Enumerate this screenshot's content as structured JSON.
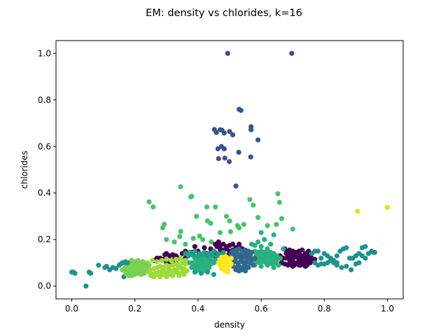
{
  "chart_data": {
    "type": "scatter",
    "title": "EM: density vs chlorides, k=16",
    "xlabel": "density",
    "ylabel": "chlorides",
    "xlim": [
      -0.05,
      1.05
    ],
    "ylim": [
      -0.055,
      1.055
    ],
    "xticks": [
      0.0,
      0.2,
      0.4,
      0.6,
      0.8,
      1.0
    ],
    "yticks": [
      0.0,
      0.2,
      0.4,
      0.6,
      0.8,
      1.0
    ],
    "xtick_labels": [
      "0.0",
      "0.2",
      "0.4",
      "0.6",
      "0.8",
      "1.0"
    ],
    "ytick_labels": [
      "0.0",
      "0.2",
      "0.4",
      "0.6",
      "0.8",
      "1.0"
    ],
    "grid": false,
    "legend": "none",
    "series": [
      {
        "color": "#3b528b",
        "x": [
          0.494,
          0.697,
          0.53,
          0.536,
          0.452,
          0.47,
          0.476,
          0.568,
          0.568,
          0.5,
          0.51,
          0.458,
          0.483,
          0.474,
          0.59,
          0.463,
          0.483,
          0.529,
          0.465,
          0.485,
          0.499,
          0.567,
          0.52
        ],
        "y": [
          1.0,
          1.0,
          0.76,
          0.755,
          0.673,
          0.672,
          0.67,
          0.685,
          0.672,
          0.664,
          0.65,
          0.66,
          0.658,
          0.6,
          0.628,
          0.59,
          0.59,
          0.575,
          0.548,
          0.55,
          0.535,
          0.555,
          0.43
        ]
      },
      {
        "color": "#4ac16d",
        "x": [
          0.345,
          0.245,
          0.258,
          0.377,
          0.38,
          0.428,
          0.653,
          0.658,
          0.564,
          0.575,
          0.665,
          0.59,
          0.455,
          0.395,
          0.43,
          0.44,
          0.49,
          0.5,
          0.525,
          0.53,
          0.545,
          0.62,
          0.648,
          0.7,
          0.293,
          0.288,
          0.345,
          0.342,
          0.503,
          0.47,
          0.405,
          0.442,
          0.415,
          0.325,
          0.3,
          0.36,
          0.385
        ],
        "y": [
          0.427,
          0.362,
          0.34,
          0.383,
          0.386,
          0.34,
          0.397,
          0.36,
          0.372,
          0.348,
          0.29,
          0.295,
          0.34,
          0.3,
          0.28,
          0.27,
          0.3,
          0.28,
          0.26,
          0.25,
          0.265,
          0.26,
          0.265,
          0.245,
          0.266,
          0.25,
          0.235,
          0.213,
          0.234,
          0.23,
          0.215,
          0.19,
          0.2,
          0.19,
          0.2,
          0.18,
          0.205
        ]
      },
      {
        "color": "#440154",
        "x": [
          0.455,
          0.46,
          0.465,
          0.47,
          0.48,
          0.49,
          0.5,
          0.51,
          0.52,
          0.47,
          0.48,
          0.49,
          0.5,
          0.51,
          0.44,
          0.45,
          0.53,
          0.54,
          0.46,
          0.47,
          0.5,
          0.52,
          0.43,
          0.55,
          0.48,
          0.49,
          0.51,
          0.36,
          0.38,
          0.4,
          0.39,
          0.42,
          0.415,
          0.45,
          0.44,
          0.53,
          0.295,
          0.3,
          0.31,
          0.32,
          0.33,
          0.35,
          0.34,
          0.36,
          0.315,
          0.325,
          0.28,
          0.29,
          0.3,
          0.305,
          0.31,
          0.33,
          0.27,
          0.26,
          0.675,
          0.68,
          0.69,
          0.7,
          0.71,
          0.72,
          0.73,
          0.74,
          0.75,
          0.68,
          0.69,
          0.7,
          0.71,
          0.72,
          0.73,
          0.74,
          0.75,
          0.76,
          0.67,
          0.68,
          0.69,
          0.7,
          0.71,
          0.72,
          0.73,
          0.74,
          0.75,
          0.76,
          0.77,
          0.69,
          0.7,
          0.71,
          0.72,
          0.73,
          0.74,
          0.75,
          0.76,
          0.665,
          0.675,
          0.685,
          0.695,
          0.705,
          0.715,
          0.725,
          0.735,
          0.745,
          0.755,
          0.7,
          0.72,
          0.74,
          0.66,
          0.65,
          0.64
        ],
        "y": [
          0.18,
          0.17,
          0.19,
          0.175,
          0.18,
          0.17,
          0.175,
          0.18,
          0.165,
          0.16,
          0.155,
          0.16,
          0.15,
          0.155,
          0.16,
          0.15,
          0.17,
          0.16,
          0.14,
          0.145,
          0.14,
          0.15,
          0.14,
          0.15,
          0.135,
          0.13,
          0.13,
          0.15,
          0.145,
          0.15,
          0.17,
          0.165,
          0.135,
          0.13,
          0.12,
          0.18,
          0.135,
          0.14,
          0.13,
          0.135,
          0.13,
          0.14,
          0.12,
          0.12,
          0.11,
          0.115,
          0.12,
          0.115,
          0.1,
          0.1,
          0.09,
          0.1,
          0.12,
          0.11,
          0.16,
          0.15,
          0.155,
          0.15,
          0.145,
          0.15,
          0.155,
          0.14,
          0.15,
          0.14,
          0.135,
          0.13,
          0.135,
          0.14,
          0.13,
          0.135,
          0.13,
          0.14,
          0.12,
          0.12,
          0.115,
          0.12,
          0.125,
          0.12,
          0.115,
          0.12,
          0.11,
          0.12,
          0.115,
          0.1,
          0.105,
          0.1,
          0.11,
          0.1,
          0.105,
          0.1,
          0.11,
          0.1,
          0.095,
          0.09,
          0.095,
          0.09,
          0.095,
          0.09,
          0.095,
          0.09,
          0.1,
          0.085,
          0.09,
          0.085,
          0.13,
          0.12,
          0.14
        ]
      },
      {
        "color": "#2ab07f",
        "x": [
          0.385,
          0.39,
          0.4,
          0.41,
          0.42,
          0.43,
          0.44,
          0.395,
          0.405,
          0.415,
          0.425,
          0.435,
          0.445,
          0.38,
          0.39,
          0.4,
          0.41,
          0.42,
          0.43,
          0.44,
          0.45,
          0.385,
          0.395,
          0.405,
          0.415,
          0.425,
          0.435,
          0.39,
          0.4,
          0.41,
          0.42,
          0.38,
          0.43,
          0.395,
          0.41,
          0.425,
          0.37,
          0.36,
          0.445,
          0.455,
          0.58,
          0.59,
          0.6,
          0.61,
          0.62,
          0.63,
          0.64,
          0.65,
          0.585,
          0.595,
          0.605,
          0.615,
          0.625,
          0.635,
          0.645,
          0.57,
          0.58,
          0.59,
          0.6,
          0.61,
          0.62,
          0.63,
          0.64,
          0.65,
          0.66,
          0.575,
          0.585,
          0.595,
          0.605,
          0.615,
          0.625,
          0.635,
          0.645,
          0.655,
          0.58,
          0.6,
          0.62,
          0.64,
          0.56,
          0.55,
          0.54,
          0.57,
          0.6,
          0.62,
          0.63,
          0.61,
          0.59,
          0.58,
          0.6,
          0.64,
          0.67
        ],
        "y": [
          0.13,
          0.12,
          0.125,
          0.13,
          0.12,
          0.125,
          0.12,
          0.11,
          0.115,
          0.11,
          0.115,
          0.11,
          0.105,
          0.1,
          0.1,
          0.105,
          0.1,
          0.105,
          0.1,
          0.095,
          0.1,
          0.09,
          0.085,
          0.09,
          0.085,
          0.09,
          0.08,
          0.075,
          0.075,
          0.07,
          0.075,
          0.08,
          0.07,
          0.065,
          0.06,
          0.065,
          0.1,
          0.11,
          0.13,
          0.11,
          0.15,
          0.145,
          0.15,
          0.145,
          0.14,
          0.145,
          0.14,
          0.13,
          0.135,
          0.13,
          0.135,
          0.13,
          0.125,
          0.13,
          0.12,
          0.12,
          0.12,
          0.115,
          0.12,
          0.115,
          0.12,
          0.11,
          0.115,
          0.11,
          0.12,
          0.1,
          0.105,
          0.1,
          0.105,
          0.1,
          0.1,
          0.095,
          0.1,
          0.09,
          0.09,
          0.085,
          0.09,
          0.08,
          0.1,
          0.12,
          0.13,
          0.18,
          0.17,
          0.16,
          0.18,
          0.2,
          0.19,
          0.175,
          0.23,
          0.22,
          0.16
        ]
      },
      {
        "color": "#21918c",
        "x": [
          0.0,
          0.005,
          0.01,
          0.045,
          0.055,
          0.06,
          0.085,
          0.105,
          0.11,
          0.12,
          0.13,
          0.14,
          0.15,
          0.155,
          0.16,
          0.165,
          0.17,
          0.175,
          0.18,
          0.19,
          0.2,
          0.165,
          0.175,
          0.185,
          0.195,
          0.76,
          0.77,
          0.78,
          0.79,
          0.8,
          0.81,
          0.82,
          0.83,
          0.84,
          0.85,
          0.86,
          0.87,
          0.88,
          0.89,
          0.9,
          0.91,
          0.92,
          0.93,
          0.94,
          0.95,
          0.96,
          0.89,
          0.84,
          0.8,
          0.77,
          0.78,
          0.79,
          0.81,
          0.82,
          0.83,
          0.84,
          0.855,
          0.87,
          0.885,
          0.9,
          0.91,
          0.92,
          0.93,
          0.955
        ],
        "y": [
          0.06,
          0.06,
          0.055,
          0.0,
          0.06,
          0.055,
          0.09,
          0.08,
          0.085,
          0.07,
          0.08,
          0.075,
          0.09,
          0.095,
          0.1,
          0.1,
          0.105,
          0.09,
          0.1,
          0.11,
          0.09,
          0.04,
          0.06,
          0.065,
          0.07,
          0.14,
          0.15,
          0.15,
          0.12,
          0.14,
          0.13,
          0.12,
          0.11,
          0.13,
          0.15,
          0.16,
          0.165,
          0.12,
          0.12,
          0.13,
          0.1,
          0.165,
          0.17,
          0.14,
          0.15,
          0.145,
          0.12,
          0.1,
          0.095,
          0.1,
          0.09,
          0.095,
          0.1,
          0.11,
          0.1,
          0.09,
          0.08,
          0.085,
          0.07,
          0.095,
          0.14,
          0.13,
          0.12,
          0.145
        ]
      },
      {
        "color": "#9fda3a",
        "x": [
          0.245,
          0.25,
          0.26,
          0.27,
          0.28,
          0.29,
          0.3,
          0.31,
          0.32,
          0.33,
          0.34,
          0.35,
          0.36,
          0.255,
          0.265,
          0.275,
          0.285,
          0.295,
          0.305,
          0.315,
          0.325,
          0.335,
          0.345,
          0.355,
          0.25,
          0.26,
          0.27,
          0.28,
          0.29,
          0.3,
          0.31,
          0.32,
          0.33,
          0.34,
          0.35,
          0.365,
          0.24,
          0.255,
          0.27,
          0.285,
          0.3,
          0.315,
          0.33,
          0.345,
          0.36,
          0.26,
          0.28,
          0.3,
          0.32,
          0.34,
          0.355
        ],
        "y": [
          0.06,
          0.07,
          0.075,
          0.08,
          0.085,
          0.08,
          0.09,
          0.085,
          0.09,
          0.095,
          0.09,
          0.1,
          0.095,
          0.05,
          0.055,
          0.06,
          0.065,
          0.06,
          0.07,
          0.065,
          0.07,
          0.075,
          0.08,
          0.075,
          0.045,
          0.045,
          0.05,
          0.045,
          0.05,
          0.055,
          0.05,
          0.055,
          0.06,
          0.055,
          0.06,
          0.065,
          0.1,
          0.11,
          0.105,
          0.11,
          0.115,
          0.11,
          0.115,
          0.12,
          0.11,
          0.04,
          0.04,
          0.04,
          0.045,
          0.045,
          0.05
        ]
      },
      {
        "color": "#7ad151",
        "x": [
          0.16,
          0.165,
          0.17,
          0.175,
          0.18,
          0.185,
          0.19,
          0.195,
          0.2,
          0.205,
          0.21,
          0.215,
          0.22,
          0.225,
          0.23,
          0.235,
          0.17,
          0.18,
          0.19,
          0.2,
          0.21,
          0.22,
          0.23,
          0.175,
          0.185,
          0.195,
          0.205,
          0.215,
          0.225,
          0.235,
          0.18,
          0.19,
          0.2,
          0.21,
          0.22,
          0.23,
          0.19,
          0.2,
          0.21,
          0.22,
          0.24,
          0.245
        ],
        "y": [
          0.07,
          0.075,
          0.08,
          0.075,
          0.08,
          0.085,
          0.09,
          0.085,
          0.09,
          0.095,
          0.1,
          0.095,
          0.1,
          0.105,
          0.1,
          0.095,
          0.06,
          0.065,
          0.07,
          0.075,
          0.08,
          0.085,
          0.08,
          0.05,
          0.055,
          0.06,
          0.065,
          0.07,
          0.065,
          0.07,
          0.045,
          0.045,
          0.05,
          0.055,
          0.05,
          0.055,
          0.11,
          0.105,
          0.11,
          0.1,
          0.085,
          0.09
        ]
      },
      {
        "color": "#31688e",
        "x": [
          0.51,
          0.52,
          0.53,
          0.54,
          0.55,
          0.56,
          0.57,
          0.505,
          0.515,
          0.525,
          0.535,
          0.545,
          0.555,
          0.565,
          0.5,
          0.51,
          0.52,
          0.53,
          0.54,
          0.55,
          0.56,
          0.57,
          0.58,
          0.505,
          0.515,
          0.525,
          0.535,
          0.545,
          0.555,
          0.565,
          0.51,
          0.52,
          0.53,
          0.54,
          0.55,
          0.56,
          0.52,
          0.53,
          0.54,
          0.55,
          0.575
        ],
        "y": [
          0.15,
          0.155,
          0.16,
          0.15,
          0.155,
          0.15,
          0.145,
          0.14,
          0.135,
          0.14,
          0.135,
          0.14,
          0.13,
          0.135,
          0.12,
          0.125,
          0.12,
          0.125,
          0.12,
          0.125,
          0.12,
          0.115,
          0.12,
          0.1,
          0.105,
          0.1,
          0.105,
          0.1,
          0.105,
          0.1,
          0.085,
          0.08,
          0.085,
          0.08,
          0.085,
          0.08,
          0.07,
          0.065,
          0.07,
          0.065,
          0.09
        ]
      },
      {
        "color": "#fde725",
        "x": [
          0.47,
          0.475,
          0.48,
          0.485,
          0.49,
          0.495,
          0.5,
          0.505,
          0.475,
          0.48,
          0.485,
          0.49,
          0.495,
          0.5,
          0.47,
          0.48,
          0.49,
          0.5,
          0.475,
          0.485,
          0.495,
          0.465,
          0.505,
          0.485,
          0.495
        ],
        "y": [
          0.12,
          0.125,
          0.12,
          0.13,
          0.125,
          0.12,
          0.115,
          0.12,
          0.105,
          0.1,
          0.11,
          0.105,
          0.1,
          0.105,
          0.09,
          0.085,
          0.09,
          0.085,
          0.075,
          0.07,
          0.075,
          0.1,
          0.095,
          0.065,
          0.06
        ]
      },
      {
        "color": "#dde318",
        "x": [
          0.905,
          1.0
        ],
        "y": [
          0.322,
          0.338
        ]
      },
      {
        "color": "#1f9e89",
        "x": [
          0.36,
          0.375,
          0.39,
          0.405,
          0.42,
          0.435,
          0.45,
          0.465,
          0.48,
          0.37,
          0.385,
          0.4,
          0.415,
          0.43,
          0.445,
          0.46,
          0.39,
          0.41,
          0.43,
          0.45
        ],
        "y": [
          0.14,
          0.145,
          0.15,
          0.14,
          0.145,
          0.14,
          0.15,
          0.14,
          0.145,
          0.13,
          0.135,
          0.13,
          0.135,
          0.13,
          0.135,
          0.13,
          0.06,
          0.055,
          0.06,
          0.05
        ]
      }
    ]
  }
}
